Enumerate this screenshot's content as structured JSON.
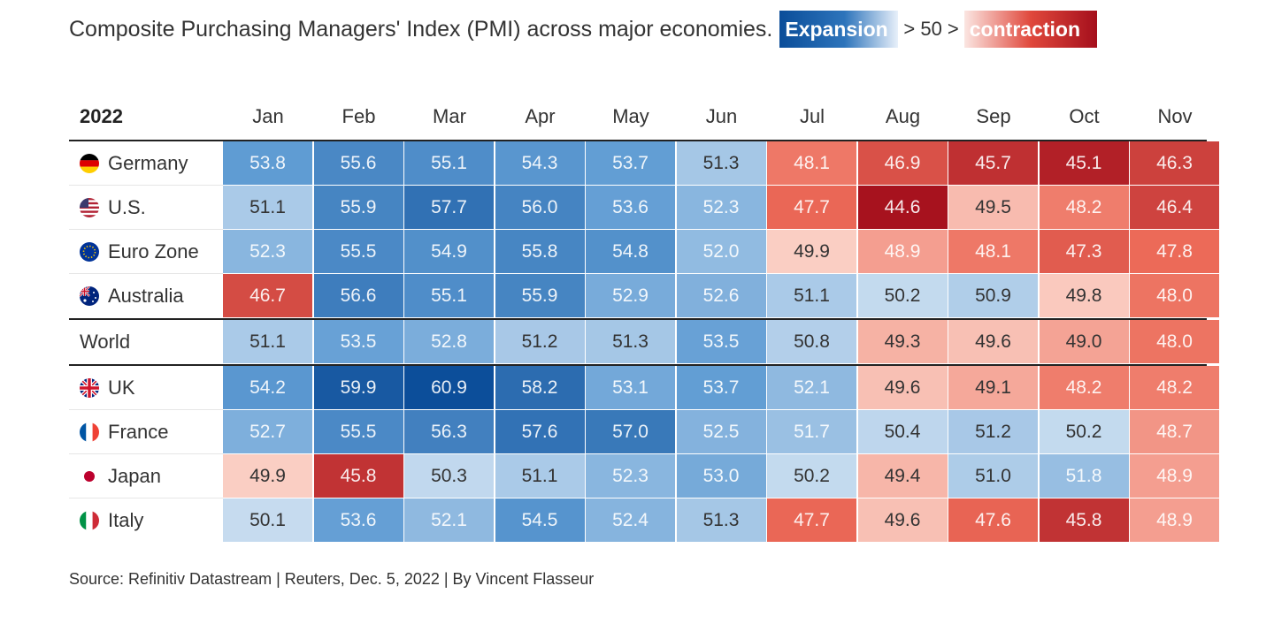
{
  "title": "Composite Purchasing Managers' Index (PMI) across major economies.",
  "legend": {
    "expansion_label": "Expansion",
    "middle_label": "> 50 >",
    "contraction_label": "contraction"
  },
  "source": "Source: Refinitiv Datastream | Reuters, Dec. 5, 2022 | By Vincent Flasseur",
  "chart_data": {
    "type": "heatmap",
    "year_label": "2022",
    "x": [
      "Jan",
      "Feb",
      "Mar",
      "Apr",
      "May",
      "Jun",
      "Jul",
      "Aug",
      "Sep",
      "Oct",
      "Nov"
    ],
    "threshold": 50,
    "color_scale": {
      "expansion": "#0b4d99",
      "neutral": "#f5f5f5",
      "contraction": "#a50f1c"
    },
    "rows": [
      {
        "name": "Germany",
        "flag": "germany-flag",
        "values": [
          53.8,
          55.6,
          55.1,
          54.3,
          53.7,
          51.3,
          48.1,
          46.9,
          45.7,
          45.1,
          46.3
        ]
      },
      {
        "name": "U.S.",
        "flag": "us-flag",
        "values": [
          51.1,
          55.9,
          57.7,
          56.0,
          53.6,
          52.3,
          47.7,
          44.6,
          49.5,
          48.2,
          46.4
        ]
      },
      {
        "name": "Euro Zone",
        "flag": "eu-flag",
        "values": [
          52.3,
          55.5,
          54.9,
          55.8,
          54.8,
          52.0,
          49.9,
          48.9,
          48.1,
          47.3,
          47.8
        ]
      },
      {
        "name": "Australia",
        "flag": "australia-flag",
        "values": [
          46.7,
          56.6,
          55.1,
          55.9,
          52.9,
          52.6,
          51.1,
          50.2,
          50.9,
          49.8,
          48.0
        ]
      },
      {
        "name": "World",
        "flag": "",
        "values": [
          51.1,
          53.5,
          52.8,
          51.2,
          51.3,
          53.5,
          50.8,
          49.3,
          49.6,
          49.0,
          48.0
        ]
      },
      {
        "name": "UK",
        "flag": "uk-flag",
        "values": [
          54.2,
          59.9,
          60.9,
          58.2,
          53.1,
          53.7,
          52.1,
          49.6,
          49.1,
          48.2,
          48.2
        ]
      },
      {
        "name": "France",
        "flag": "france-flag",
        "values": [
          52.7,
          55.5,
          56.3,
          57.6,
          57.0,
          52.5,
          51.7,
          50.4,
          51.2,
          50.2,
          48.7
        ]
      },
      {
        "name": "Japan",
        "flag": "japan-flag",
        "values": [
          49.9,
          45.8,
          50.3,
          51.1,
          52.3,
          53.0,
          50.2,
          49.4,
          51.0,
          51.8,
          48.9
        ]
      },
      {
        "name": "Italy",
        "flag": "italy-flag",
        "values": [
          50.1,
          53.6,
          52.1,
          54.5,
          52.4,
          51.3,
          47.7,
          49.6,
          47.6,
          45.8,
          48.9
        ]
      }
    ]
  }
}
